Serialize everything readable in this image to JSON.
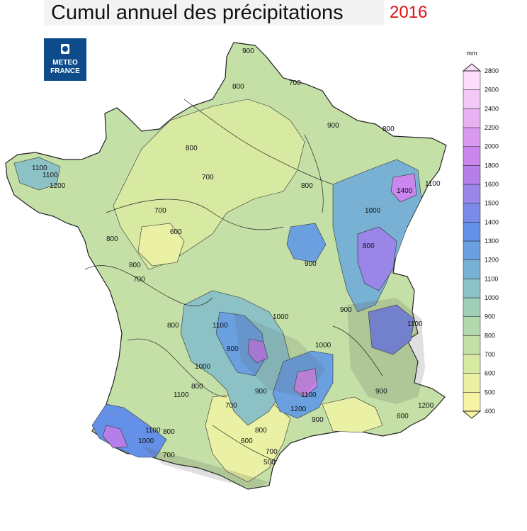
{
  "title": "Cumul annuel des précipitations",
  "year": "2016",
  "logo": {
    "line1": "METEO",
    "line2": "FRANCE"
  },
  "legend": {
    "unit": "mm",
    "levels": [
      400,
      500,
      600,
      700,
      800,
      900,
      1000,
      1100,
      1200,
      1300,
      1400,
      1500,
      1600,
      1800,
      2000,
      2200,
      2400,
      2600,
      2800
    ],
    "colors": [
      "#f7f3a4",
      "#eaf0a4",
      "#d8e9a2",
      "#c4e0a7",
      "#b2d8ad",
      "#a0ceb9",
      "#8cc2c6",
      "#79b1d4",
      "#6aa0e0",
      "#6590e8",
      "#7b8ae6",
      "#9a86e8",
      "#b57ee8",
      "#c986ec",
      "#da9af0",
      "#e8b2f2",
      "#f3c8f6",
      "#fbdcf9"
    ]
  },
  "contour_labels": [
    "900",
    "800",
    "700",
    "900",
    "800",
    "800",
    "700",
    "700",
    "600",
    "800",
    "1100",
    "700",
    "800",
    "800",
    "700",
    "600",
    "800",
    "900",
    "1000",
    "1100",
    "1200",
    "1100",
    "900",
    "1000",
    "1100",
    "800",
    "1400",
    "1100",
    "800",
    "1000",
    "900",
    "1100",
    "1000",
    "800",
    "700",
    "1000",
    "900",
    "1100",
    "1200",
    "600",
    "700",
    "800",
    "500",
    "1100",
    "1200",
    "800",
    "900"
  ]
}
